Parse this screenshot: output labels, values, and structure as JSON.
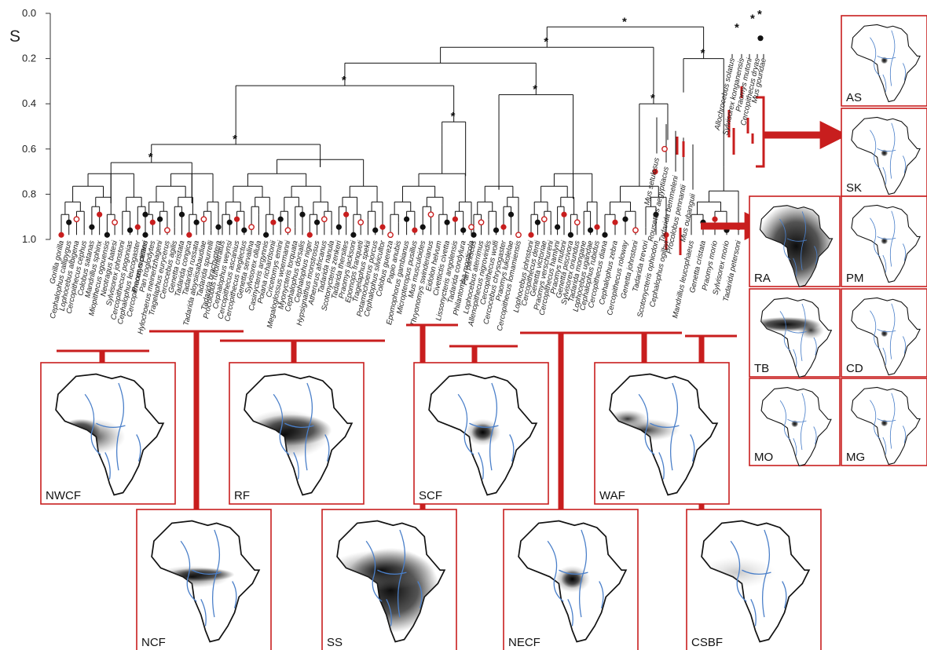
{
  "axis": {
    "title": "S",
    "ticks": [
      "0.0",
      "0.2",
      "0.4",
      "0.6",
      "0.8",
      "1.0"
    ]
  },
  "clades": [
    {
      "label": "NWCF",
      "shading": "medium",
      "species": [
        "Gorilla gorilla",
        "Cephalophus callipygus",
        "Lophocebus albigena",
        "Cercopithecus cephus",
        "Colobus satanas",
        "Mandrillus sphinx",
        "Miopithecus ogouensis",
        "Neotragus batesi",
        "Sylvisorex johnstoni",
        "Cercopithecus pogonias",
        "Cephalophus leucogaster",
        "Cercopithecus nictitans"
      ]
    },
    {
      "label": "NCF",
      "shading": "narrow",
      "species": [
        "Praomys petteri",
        "Pan troglodytes",
        "Hylochoerus meinertzhageni",
        "Tragelaphus eurycerus",
        "Cercocebus agilis",
        "Genetta cristata",
        "Tadarida congica",
        "Tadarida russata",
        "Tadarida aloysiisabaudiae",
        "Tadarida spurrelli",
        "Tadarida brachyptera"
      ]
    },
    {
      "label": "RF",
      "shading": "wide",
      "species": [
        "Procolobus rufomitratus",
        "Cephalophus weynsi",
        "Cercopithecus ascanius",
        "Cercopithecus neglectus",
        "Genetta servalina",
        "Sylvisorex ollula",
        "Casinycteris argynnis",
        "Poiana richardsonii",
        "Cricetomys emini",
        "Megaloglossus woermanni",
        "Myonycteris torquata",
        "Cephalophus dorsalis",
        "Cephalophus niger",
        "Hypsignathus monstrosus",
        "Atherurus africanus",
        "Tadarida nanula",
        "Scotonycteris zenkeri",
        "Tadarida thersites",
        "Praomys jacksoni",
        "Epomops franqueti",
        "Tragelaphus spekii",
        "Potamochoerus porcus",
        "Cephalophus silvicultor"
      ]
    },
    {
      "label": "SS",
      "shading": "broad",
      "species": [
        "Colobus guereza",
        "Papio anubis",
        "Epomophorus gambianus",
        "Micropteropus pusillus",
        "Mus musculoides",
        "Thryonomys swinderianus",
        "Eidolon helvum",
        "Civettictis civetta",
        "Lissonycteris angolensis",
        "Tadarida condylura",
        "Philantomba monticola"
      ]
    },
    {
      "label": "SCF",
      "shading": "compact",
      "species": [
        "Pan paniscus",
        "Lophocebus aterrimus",
        "Allenopithecus nigroviridis",
        "Cercopithecus wolfi",
        "Cercocebus chrysogaster",
        "Praomys lukolelae",
        "Cercopithecus lomamiensis"
      ]
    },
    {
      "label": "NECF",
      "shading": "compact",
      "species": [
        "Lophocebus johnstoni",
        "Cercopithecus denti",
        "Genetta victoriae",
        "Praomys verschureni",
        "Cercopithecus hamlyni",
        "Praomys mutoni",
        "Genetta piscivora",
        "Sylvisorex oriundus",
        "Tadarida mongane",
        "Lophocebus ugandae",
        "Cephalophus rubidus"
      ]
    },
    {
      "label": "WAF",
      "shading": "west",
      "species": [
        "Cercopithecus diana",
        "Cephalophus zebra",
        "Cercopithecus roloway",
        "Genetta johnstoni",
        "Tadarida trevori",
        "Scotonycteris ophiodon",
        "Cephalophus ogilbyi"
      ]
    },
    {
      "label": "CSBF",
      "shading": "faint",
      "species": [
        "Mandrillus leucophaeus",
        "Genetta cristata",
        "Praomys morio",
        "Sylvisorex morio",
        "Tadarida petersoni"
      ]
    }
  ],
  "singles": [
    "Mus setulosus",
    "Rousettus aegyptiacus",
    "Tadarida bemmeleni",
    "Procolobus pennantii",
    "Mus oubanguii",
    "Allochrocebus solatus",
    "Sylvisorex konganensis",
    "Praomys mutoni",
    "Cercopithecus dryas",
    "Mus goundae"
  ],
  "single_maps": [
    {
      "label": "RA",
      "shading": "africa"
    },
    {
      "label": "TB",
      "shading": "belt"
    },
    {
      "label": "MO",
      "shading": "point"
    }
  ],
  "inset_maps": [
    {
      "label": "AS",
      "shading": "point"
    },
    {
      "label": "SK",
      "shading": "point"
    },
    {
      "label": "PM",
      "shading": "point"
    },
    {
      "label": "CD",
      "shading": "point"
    },
    {
      "label": "MG",
      "shading": "point"
    }
  ],
  "colors": {
    "accent": "#c81e1e",
    "filled_node": "#111111",
    "river": "#4a7fc9",
    "branch": "#111111"
  }
}
